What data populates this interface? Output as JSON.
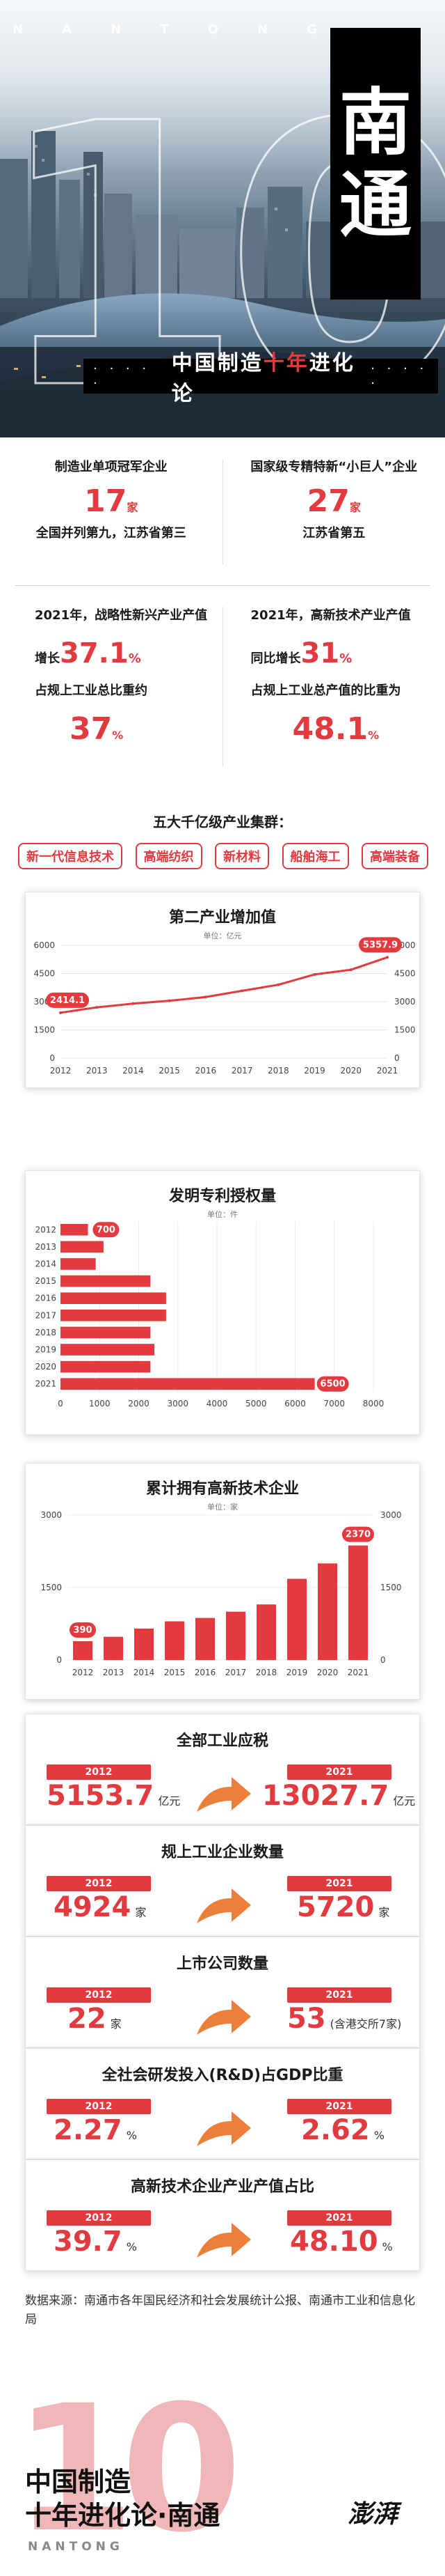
{
  "hero": {
    "pinyin": [
      "N",
      "A",
      "N",
      "T",
      "O",
      "N",
      "G"
    ],
    "big_number": "10",
    "title_chars": [
      "南",
      "通"
    ],
    "subtitle_before": "中国制造",
    "subtitle_red": "十年",
    "subtitle_after": "进化论",
    "dots": "· · · · ·"
  },
  "stats": {
    "a": {
      "head": "制造业单项冠军企业",
      "num": "17",
      "unit": "家",
      "foot": "全国并列第九，江苏省第三"
    },
    "b": {
      "head": "国家级专精特新“小巨人”企业",
      "num": "27",
      "unit": "家",
      "foot": "江苏省第五"
    },
    "c": {
      "head": "2021年，战略性新兴产业产值",
      "l1_pre": "增长",
      "l1_num": "37.1",
      "l1_post": "%",
      "l2": "占规上工业总比重约",
      "l3_num": "37",
      "l3_post": "%"
    },
    "d": {
      "head": "2021年，高新技术产业产值",
      "l1_pre": "同比增长",
      "l1_num": "31",
      "l1_post": "%",
      "l2": "占规上工业总产值的比重为",
      "l3_num": "48.1",
      "l3_post": "%"
    }
  },
  "clusters": {
    "title": "五大千亿级产业集群：",
    "tags": [
      "新一代信息技术",
      "高端纺织",
      "新材料",
      "船舶海工",
      "高端装备"
    ]
  },
  "charts": {
    "secondary": {
      "title": "第二产业增加值",
      "unit": "单位：亿元"
    },
    "patents": {
      "title": "发明专利授权量",
      "unit": "单位：件"
    },
    "hightech": {
      "title": "累计拥有高新技术企业",
      "unit": "单位：家"
    }
  },
  "chart_data": [
    {
      "type": "line",
      "title": "第二产业增加值",
      "unit": "单位：亿元",
      "x": [
        "2012",
        "2013",
        "2014",
        "2015",
        "2016",
        "2017",
        "2018",
        "2019",
        "2020",
        "2021"
      ],
      "values": [
        2414.1,
        2700,
        2900,
        3050,
        3250,
        3580,
        3900,
        4450,
        4700,
        5357.9
      ],
      "ylim": [
        0,
        6000
      ],
      "yticks": [
        0,
        1500,
        3000,
        4500,
        6000
      ],
      "labeled": {
        "2012": "2414.1",
        "2021": "5357.9"
      }
    },
    {
      "type": "bar",
      "orientation": "horizontal",
      "title": "发明专利授权量",
      "unit": "单位：件",
      "categories": [
        "2012",
        "2013",
        "2014",
        "2015",
        "2016",
        "2017",
        "2018",
        "2019",
        "2020",
        "2021"
      ],
      "values": [
        700,
        1100,
        900,
        2300,
        2700,
        2700,
        2300,
        2400,
        2300,
        6500
      ],
      "xlim": [
        0,
        8000
      ],
      "xticks": [
        0,
        1000,
        2000,
        3000,
        4000,
        5000,
        6000,
        7000,
        8000
      ],
      "labeled": {
        "2012": "700",
        "2021": "6500"
      }
    },
    {
      "type": "bar",
      "title": "累计拥有高新技术企业",
      "unit": "单位：家",
      "categories": [
        "2012",
        "2013",
        "2014",
        "2015",
        "2016",
        "2017",
        "2018",
        "2019",
        "2020",
        "2021"
      ],
      "values": [
        390,
        480,
        650,
        800,
        870,
        1000,
        1150,
        1680,
        2000,
        2370
      ],
      "ylim": [
        0,
        3000
      ],
      "yticks": [
        0,
        1500,
        3000
      ],
      "labeled": {
        "2012": "390",
        "2021": "2370"
      }
    }
  ],
  "compare": [
    {
      "title": "全部工业应税",
      "y1": "2012",
      "v1": "5153.7",
      "u1": "亿元",
      "y2": "2021",
      "v2": "13027.7",
      "u2": "亿元"
    },
    {
      "title": "规上工业企业数量",
      "y1": "2012",
      "v1": "4924",
      "u1": "家",
      "y2": "2021",
      "v2": "5720",
      "u2": "家"
    },
    {
      "title": "上市公司数量",
      "y1": "2012",
      "v1": "22",
      "u1": "家",
      "y2": "2021",
      "v2": "53",
      "u2": "(含港交所7家)"
    },
    {
      "title": "全社会研发投入(R&D)占GDP比重",
      "y1": "2012",
      "v1": "2.27",
      "u1": "%",
      "y2": "2021",
      "v2": "2.62",
      "u2": "%"
    },
    {
      "title": "高新技术企业产业产值占比",
      "y1": "2012",
      "v1": "39.7",
      "u1": "%",
      "y2": "2021",
      "v2": "48.10",
      "u2": "%"
    }
  ],
  "source": "数据来源：南通市各年国民经济和社会发展统计公报、南通市工业和信息化局",
  "footer": {
    "big": "10",
    "line1": "中国制造",
    "line2": "十年进化论·南通",
    "pinyin": "NANTONG",
    "logo": "澎湃"
  },
  "colors": {
    "accent": "#e23a3f",
    "dark": "#000000"
  }
}
